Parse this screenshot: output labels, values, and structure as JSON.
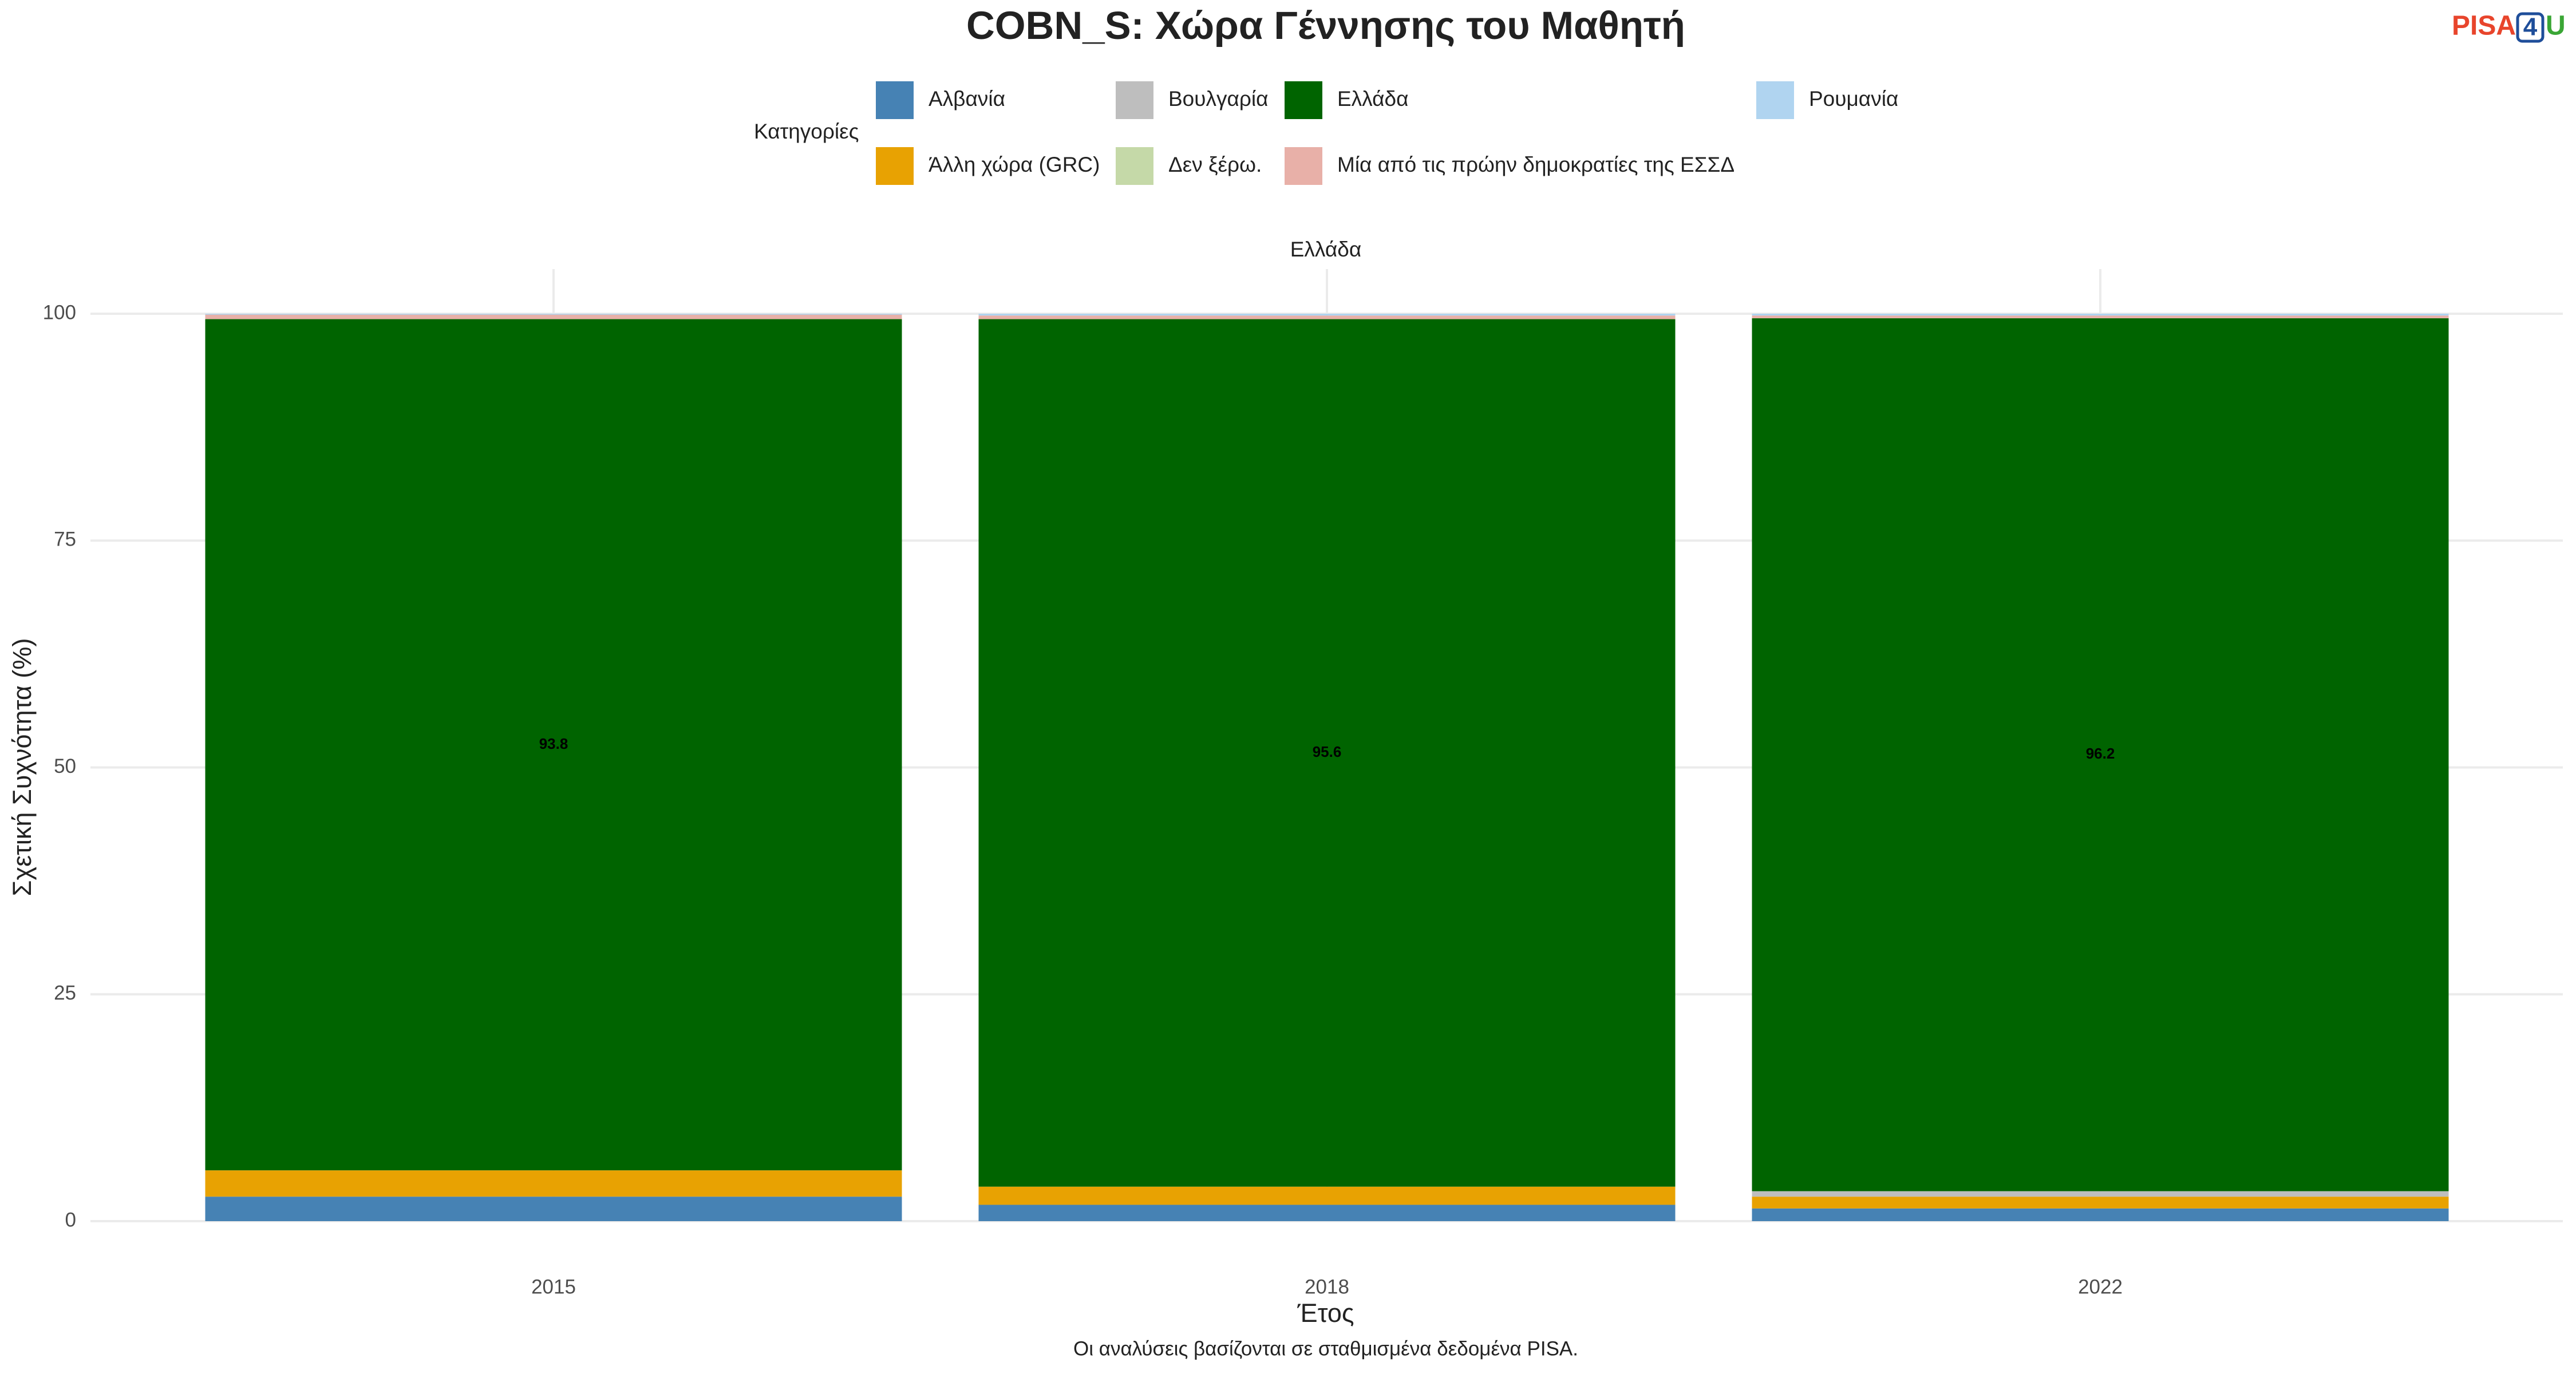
{
  "chart_data": {
    "type": "stacked_bar",
    "title": "COBN_S: Χώρα Γέννησης του Μαθητή",
    "logo": {
      "part1": "PISA",
      "part2": "4",
      "part3": "U"
    },
    "legend_title": "Κατηγορίες",
    "facet": "Ελλάδα",
    "x_label": "Έτος",
    "y_label": "Σχετική Συχνότητα (%)",
    "caption": "Οι αναλύσεις βασίζονται σε σταθμισμένα δεδομένα PISA.",
    "categories": [
      "2015",
      "2018",
      "2022"
    ],
    "series": [
      {
        "name": "Αλβανία",
        "color": "#4682b4",
        "values": [
          2.7,
          1.8,
          1.4
        ]
      },
      {
        "name": "Άλλη χώρα (GRC)",
        "color": "#e8a202",
        "values": [
          2.9,
          2.0,
          1.3
        ]
      },
      {
        "name": "Βουλγαρία",
        "color": "#bebebe",
        "values": [
          0,
          0,
          0.6
        ]
      },
      {
        "name": "Δεν ξέρω.",
        "color": "#c5d9a8",
        "values": [
          0,
          0,
          0
        ]
      },
      {
        "name": "Ελλάδα",
        "color": "#006400",
        "values": [
          93.8,
          95.6,
          96.2
        ]
      },
      {
        "name": "Μία από τις πρώην δημοκρατίες της ΕΣΣΔ",
        "color": "#e8b0a8",
        "values": [
          0.5,
          0.4,
          0.3
        ]
      },
      {
        "name": "Ρουμανία",
        "color": "#b0d4f0",
        "values": [
          0.1,
          0.2,
          0.2
        ]
      }
    ],
    "ylim": [
      0,
      100
    ],
    "yticks": [
      0,
      25,
      50,
      75,
      100
    ],
    "grid": true
  }
}
